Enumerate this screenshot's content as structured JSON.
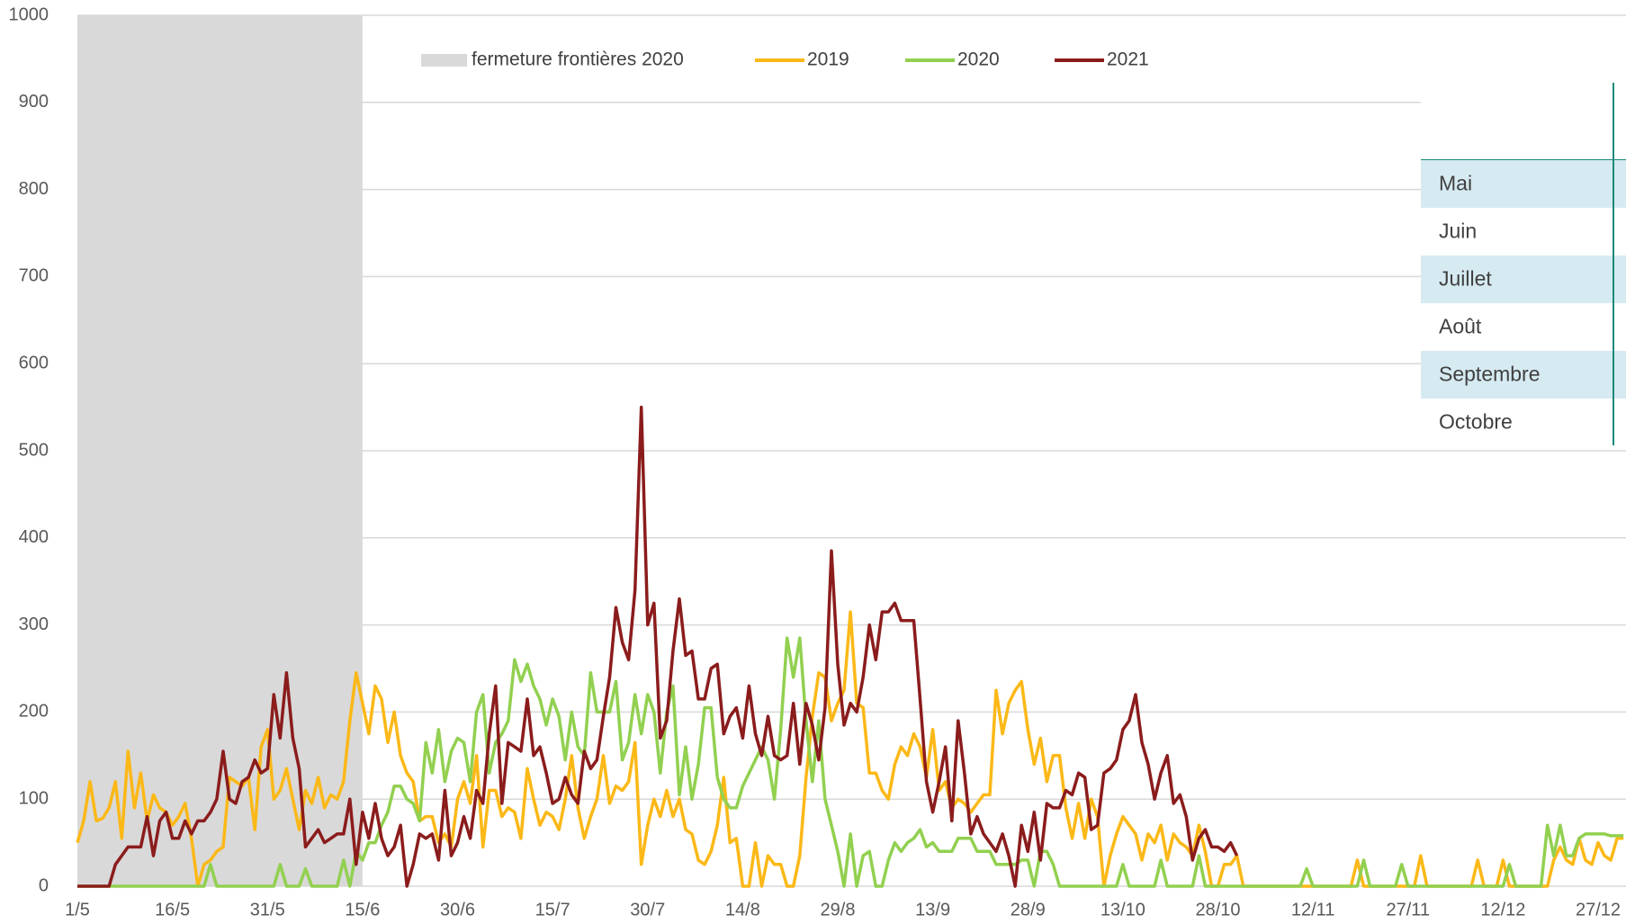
{
  "chart_data": {
    "type": "line",
    "categories": [
      "1/5",
      null,
      null,
      null,
      null,
      null,
      null,
      null,
      null,
      null,
      null,
      null,
      null,
      null,
      null,
      "16/5",
      null,
      null,
      null,
      null,
      null,
      null,
      null,
      null,
      null,
      null,
      null,
      null,
      null,
      null,
      "31/5",
      null,
      null,
      null,
      null,
      null,
      null,
      null,
      null,
      null,
      null,
      null,
      null,
      null,
      null,
      "15/6",
      null,
      null,
      null,
      null,
      null,
      null,
      null,
      null,
      null,
      null,
      null,
      null,
      null,
      null,
      "30/6",
      null,
      null,
      null,
      null,
      null,
      null,
      null,
      null,
      null,
      null,
      null,
      null,
      null,
      null,
      "15/7",
      null,
      null,
      null,
      null,
      null,
      null,
      null,
      null,
      null,
      null,
      null,
      null,
      null,
      null,
      "30/7",
      null,
      null,
      null,
      null,
      null,
      null,
      null,
      null,
      null,
      null,
      null,
      null,
      null,
      null,
      "14/8",
      null,
      null,
      null,
      null,
      null,
      null,
      null,
      null,
      null,
      null,
      null,
      null,
      null,
      null,
      "29/8",
      null,
      null,
      null,
      null,
      null,
      null,
      null,
      null,
      null,
      null,
      null,
      null,
      null,
      null,
      "13/9",
      null,
      null,
      null,
      null,
      null,
      null,
      null,
      null,
      null,
      null,
      null,
      null,
      null,
      null,
      "28/9",
      null,
      null,
      null,
      null,
      null,
      null,
      null,
      null,
      null,
      null,
      null,
      null,
      null,
      null,
      "13/10",
      null,
      null,
      null,
      null,
      null,
      null,
      null,
      null,
      null,
      null,
      null,
      null,
      null,
      null,
      "28/10",
      null,
      null,
      null,
      null,
      null,
      null,
      null,
      null,
      null,
      null,
      null,
      null,
      null,
      null,
      "12/11",
      null,
      null,
      null,
      null,
      null,
      null,
      null,
      null,
      null,
      null,
      null,
      null,
      null,
      null,
      "27/11",
      null,
      null,
      null,
      null,
      null,
      null,
      null,
      null,
      null,
      null,
      null,
      null,
      null,
      null,
      "12/12",
      null,
      null,
      null,
      null,
      null,
      null,
      null,
      null,
      null,
      null,
      null,
      null,
      null,
      null,
      "27/12",
      null,
      null,
      null,
      null
    ],
    "shade": {
      "name": "fermeture frontières 2020",
      "color": "#d9d9d9",
      "range": [
        "1/5",
        "15/6"
      ]
    },
    "series": [
      {
        "name": "2019",
        "color": "#fbb817",
        "values": [
          50,
          75,
          120,
          75,
          78,
          90,
          120,
          55,
          155,
          90,
          130,
          75,
          105,
          90,
          85,
          70,
          80,
          95,
          55,
          0,
          25,
          30,
          40,
          45,
          125,
          120,
          115,
          125,
          65,
          160,
          180,
          100,
          110,
          135,
          100,
          65,
          110,
          95,
          125,
          90,
          105,
          100,
          120,
          190,
          245,
          210,
          175,
          230,
          215,
          165,
          200,
          150,
          130,
          120,
          75,
          80,
          80,
          50,
          60,
          45,
          100,
          120,
          95,
          150,
          45,
          110,
          110,
          80,
          90,
          85,
          55,
          135,
          100,
          70,
          85,
          80,
          65,
          100,
          150,
          90,
          55,
          80,
          100,
          150,
          95,
          115,
          110,
          120,
          165,
          25,
          70,
          100,
          80,
          110,
          80,
          100,
          65,
          60,
          30,
          25,
          40,
          70,
          125,
          50,
          55,
          0,
          0,
          50,
          0,
          35,
          25,
          25,
          0,
          0,
          35,
          125,
          195,
          245,
          240,
          190,
          210,
          225,
          315,
          210,
          205,
          130,
          130,
          110,
          100,
          140,
          160,
          150,
          175,
          160,
          125,
          180,
          110,
          120,
          90,
          100,
          95,
          85,
          95,
          105,
          105,
          225,
          175,
          210,
          225,
          235,
          180,
          140,
          170,
          120,
          150,
          150,
          90,
          55,
          95,
          55,
          100,
          80,
          0,
          35,
          60,
          80,
          70,
          60,
          30,
          60,
          50,
          70,
          30,
          60,
          50,
          45,
          35,
          70,
          40,
          0,
          0,
          25,
          25,
          35,
          0,
          0,
          0,
          0,
          0,
          0,
          0,
          0,
          0,
          0,
          0,
          0,
          0,
          0,
          0,
          0,
          0,
          0,
          30,
          0,
          0,
          0,
          0,
          0,
          0,
          0,
          0,
          0,
          35,
          0,
          0,
          0,
          0,
          0,
          0,
          0,
          0,
          30,
          0,
          0,
          0,
          30,
          0,
          0,
          0,
          0,
          0,
          0,
          0,
          30,
          45,
          30,
          25,
          55,
          30,
          25,
          50,
          35,
          30,
          55,
          55
        ]
      },
      {
        "name": "2020",
        "color": "#92d050",
        "values": [
          0,
          0,
          0,
          0,
          0,
          0,
          0,
          0,
          0,
          0,
          0,
          0,
          0,
          0,
          0,
          0,
          0,
          0,
          0,
          0,
          0,
          25,
          0,
          0,
          0,
          0,
          0,
          0,
          0,
          0,
          0,
          0,
          25,
          0,
          0,
          0,
          20,
          0,
          0,
          0,
          0,
          0,
          30,
          0,
          40,
          30,
          50,
          50,
          70,
          85,
          115,
          115,
          100,
          95,
          75,
          165,
          130,
          180,
          120,
          155,
          170,
          165,
          120,
          200,
          220,
          130,
          165,
          175,
          190,
          260,
          235,
          255,
          230,
          215,
          185,
          215,
          195,
          145,
          200,
          160,
          150,
          245,
          200,
          200,
          200,
          235,
          145,
          165,
          220,
          175,
          220,
          200,
          130,
          200,
          230,
          105,
          160,
          100,
          140,
          205,
          205,
          125,
          100,
          90,
          90,
          115,
          130,
          145,
          160,
          145,
          100,
          180,
          285,
          240,
          285,
          190,
          120,
          190,
          100,
          70,
          40,
          0,
          60,
          0,
          35,
          40,
          0,
          0,
          30,
          50,
          40,
          50,
          55,
          65,
          45,
          50,
          40,
          40,
          40,
          55,
          55,
          55,
          40,
          40,
          40,
          25,
          25,
          25,
          25,
          30,
          30,
          0,
          40,
          40,
          25,
          0,
          0,
          0,
          0,
          0,
          0,
          0,
          0,
          0,
          0,
          25,
          0,
          0,
          0,
          0,
          0,
          30,
          0,
          0,
          0,
          0,
          0,
          35,
          0,
          0,
          0,
          0,
          0,
          0,
          0,
          0,
          0,
          0,
          0,
          0,
          0,
          0,
          0,
          0,
          20,
          0,
          0,
          0,
          0,
          0,
          0,
          0,
          0,
          30,
          0,
          0,
          0,
          0,
          0,
          25,
          0,
          0,
          0,
          0,
          0,
          0,
          0,
          0,
          0,
          0,
          0,
          0,
          0,
          0,
          0,
          0,
          25,
          0,
          0,
          0,
          0,
          0,
          70,
          35,
          70,
          35,
          35,
          55,
          60,
          60,
          60,
          60,
          58,
          58,
          58
        ]
      },
      {
        "name": "2021",
        "color": "#8b1c1c",
        "values": [
          0,
          0,
          0,
          0,
          0,
          0,
          25,
          35,
          45,
          45,
          45,
          80,
          35,
          75,
          85,
          55,
          55,
          75,
          60,
          75,
          75,
          85,
          100,
          155,
          100,
          95,
          120,
          125,
          145,
          130,
          135,
          220,
          170,
          245,
          170,
          135,
          45,
          55,
          65,
          50,
          55,
          60,
          60,
          100,
          25,
          85,
          55,
          95,
          55,
          35,
          45,
          70,
          0,
          25,
          60,
          55,
          60,
          30,
          110,
          35,
          50,
          80,
          55,
          110,
          95,
          175,
          230,
          95,
          165,
          160,
          155,
          215,
          150,
          160,
          130,
          95,
          100,
          125,
          105,
          95,
          155,
          135,
          145,
          195,
          240,
          320,
          280,
          260,
          340,
          550,
          300,
          325,
          170,
          190,
          270,
          330,
          265,
          270,
          215,
          215,
          250,
          255,
          175,
          195,
          205,
          170,
          230,
          175,
          150,
          195,
          150,
          145,
          150,
          210,
          140,
          210,
          185,
          145,
          205,
          385,
          255,
          185,
          210,
          200,
          240,
          300,
          260,
          315,
          315,
          325,
          305,
          305,
          305,
          215,
          120,
          85,
          120,
          160,
          75,
          190,
          130,
          60,
          80,
          60,
          50,
          40,
          60,
          35,
          0,
          70,
          40,
          85,
          30,
          95,
          90,
          90,
          110,
          105,
          130,
          125,
          65,
          70,
          130,
          135,
          145,
          180,
          190,
          220,
          165,
          140,
          100,
          130,
          150,
          95,
          105,
          80,
          30,
          55,
          65,
          45,
          45,
          40,
          50,
          35,
          null,
          null,
          null,
          null,
          null,
          null,
          null,
          null,
          null,
          null,
          null,
          null,
          null,
          null,
          null,
          null,
          null,
          null,
          null,
          null,
          null,
          null,
          null,
          null,
          null,
          null,
          null,
          null,
          null,
          null,
          null,
          null,
          null,
          null,
          null,
          null,
          null,
          null,
          null,
          null,
          null,
          null,
          null,
          null,
          null,
          null,
          null,
          null,
          null,
          null,
          null,
          null,
          null,
          null,
          null,
          null,
          null,
          null,
          null,
          null,
          null
        ]
      }
    ],
    "ylim": [
      0,
      1000
    ],
    "yticks": [
      0,
      100,
      200,
      300,
      400,
      500,
      600,
      700,
      800,
      900,
      1000
    ],
    "grid": true
  },
  "month_table": [
    "Mai",
    "Juin",
    "Juillet",
    "Août",
    "Septembre",
    "Octobre"
  ]
}
